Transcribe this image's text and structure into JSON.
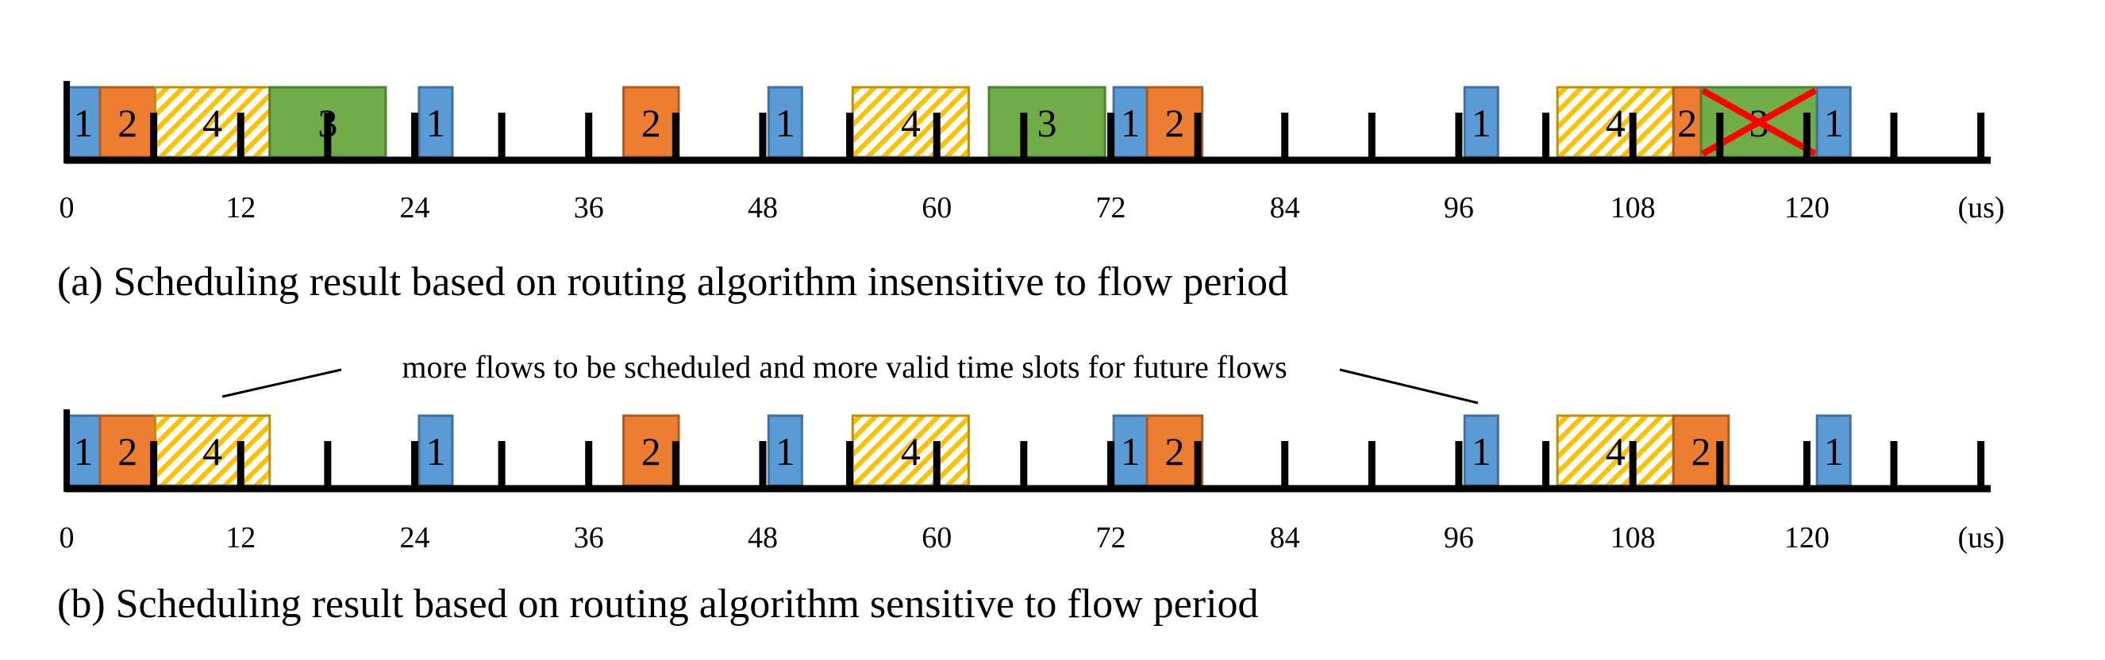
{
  "colors": {
    "flow1": "#5b9bd5",
    "flow2": "#ed7d31",
    "flow3": "#70ad47",
    "flow4_stripe": "#ffc000",
    "cross": "#ff0000",
    "axis": "#000000"
  },
  "icons": {
    "stripe_pattern": "hatch",
    "cross": "red-x-icon"
  },
  "axis": {
    "ticks": [
      "0",
      "12",
      "24",
      "36",
      "48",
      "60",
      "72",
      "84",
      "96",
      "108",
      "120"
    ],
    "unit": "(us)"
  },
  "timeline_a": {
    "caption": "(a) Scheduling result based on routing algorithm insensitive to flow period",
    "blocks": [
      {
        "flow": "1",
        "start": 0,
        "end": 2.3
      },
      {
        "flow": "2",
        "start": 2.3,
        "end": 6.1
      },
      {
        "flow": "4",
        "start": 6.1,
        "end": 14
      },
      {
        "flow": "3",
        "start": 14,
        "end": 22
      },
      {
        "flow": "1",
        "start": 24.3,
        "end": 26.6
      },
      {
        "flow": "2",
        "start": 38.4,
        "end": 42.2
      },
      {
        "flow": "1",
        "start": 48.4,
        "end": 50.7
      },
      {
        "flow": "4",
        "start": 54.2,
        "end": 62.2
      },
      {
        "flow": "3",
        "start": 63.6,
        "end": 71.6
      },
      {
        "flow": "1",
        "start": 72.2,
        "end": 74.5
      },
      {
        "flow": "2",
        "start": 74.5,
        "end": 78.3
      },
      {
        "flow": "1",
        "start": 96.4,
        "end": 98.7
      },
      {
        "flow": "4",
        "start": 102.8,
        "end": 110.8
      },
      {
        "flow": "2",
        "start": 110.8,
        "end": 112.7
      },
      {
        "flow": "3",
        "start": 112.7,
        "end": 120.7,
        "cancelled": true
      },
      {
        "flow": "1",
        "start": 120.7,
        "end": 123
      }
    ]
  },
  "timeline_b": {
    "caption": "(b) Scheduling result based on routing algorithm sensitive to flow period",
    "note": "more flows to be scheduled and more valid time slots for future flows",
    "blocks": [
      {
        "flow": "1",
        "start": 0,
        "end": 2.3
      },
      {
        "flow": "2",
        "start": 2.3,
        "end": 6.1
      },
      {
        "flow": "4",
        "start": 6.1,
        "end": 14
      },
      {
        "flow": "1",
        "start": 24.3,
        "end": 26.6
      },
      {
        "flow": "2",
        "start": 38.4,
        "end": 42.2
      },
      {
        "flow": "1",
        "start": 48.4,
        "end": 50.7
      },
      {
        "flow": "4",
        "start": 54.2,
        "end": 62.2
      },
      {
        "flow": "1",
        "start": 72.2,
        "end": 74.5
      },
      {
        "flow": "2",
        "start": 74.5,
        "end": 78.3
      },
      {
        "flow": "1",
        "start": 96.4,
        "end": 98.7
      },
      {
        "flow": "4",
        "start": 102.8,
        "end": 110.8
      },
      {
        "flow": "2",
        "start": 110.8,
        "end": 114.6
      },
      {
        "flow": "1",
        "start": 120.7,
        "end": 123
      }
    ]
  }
}
